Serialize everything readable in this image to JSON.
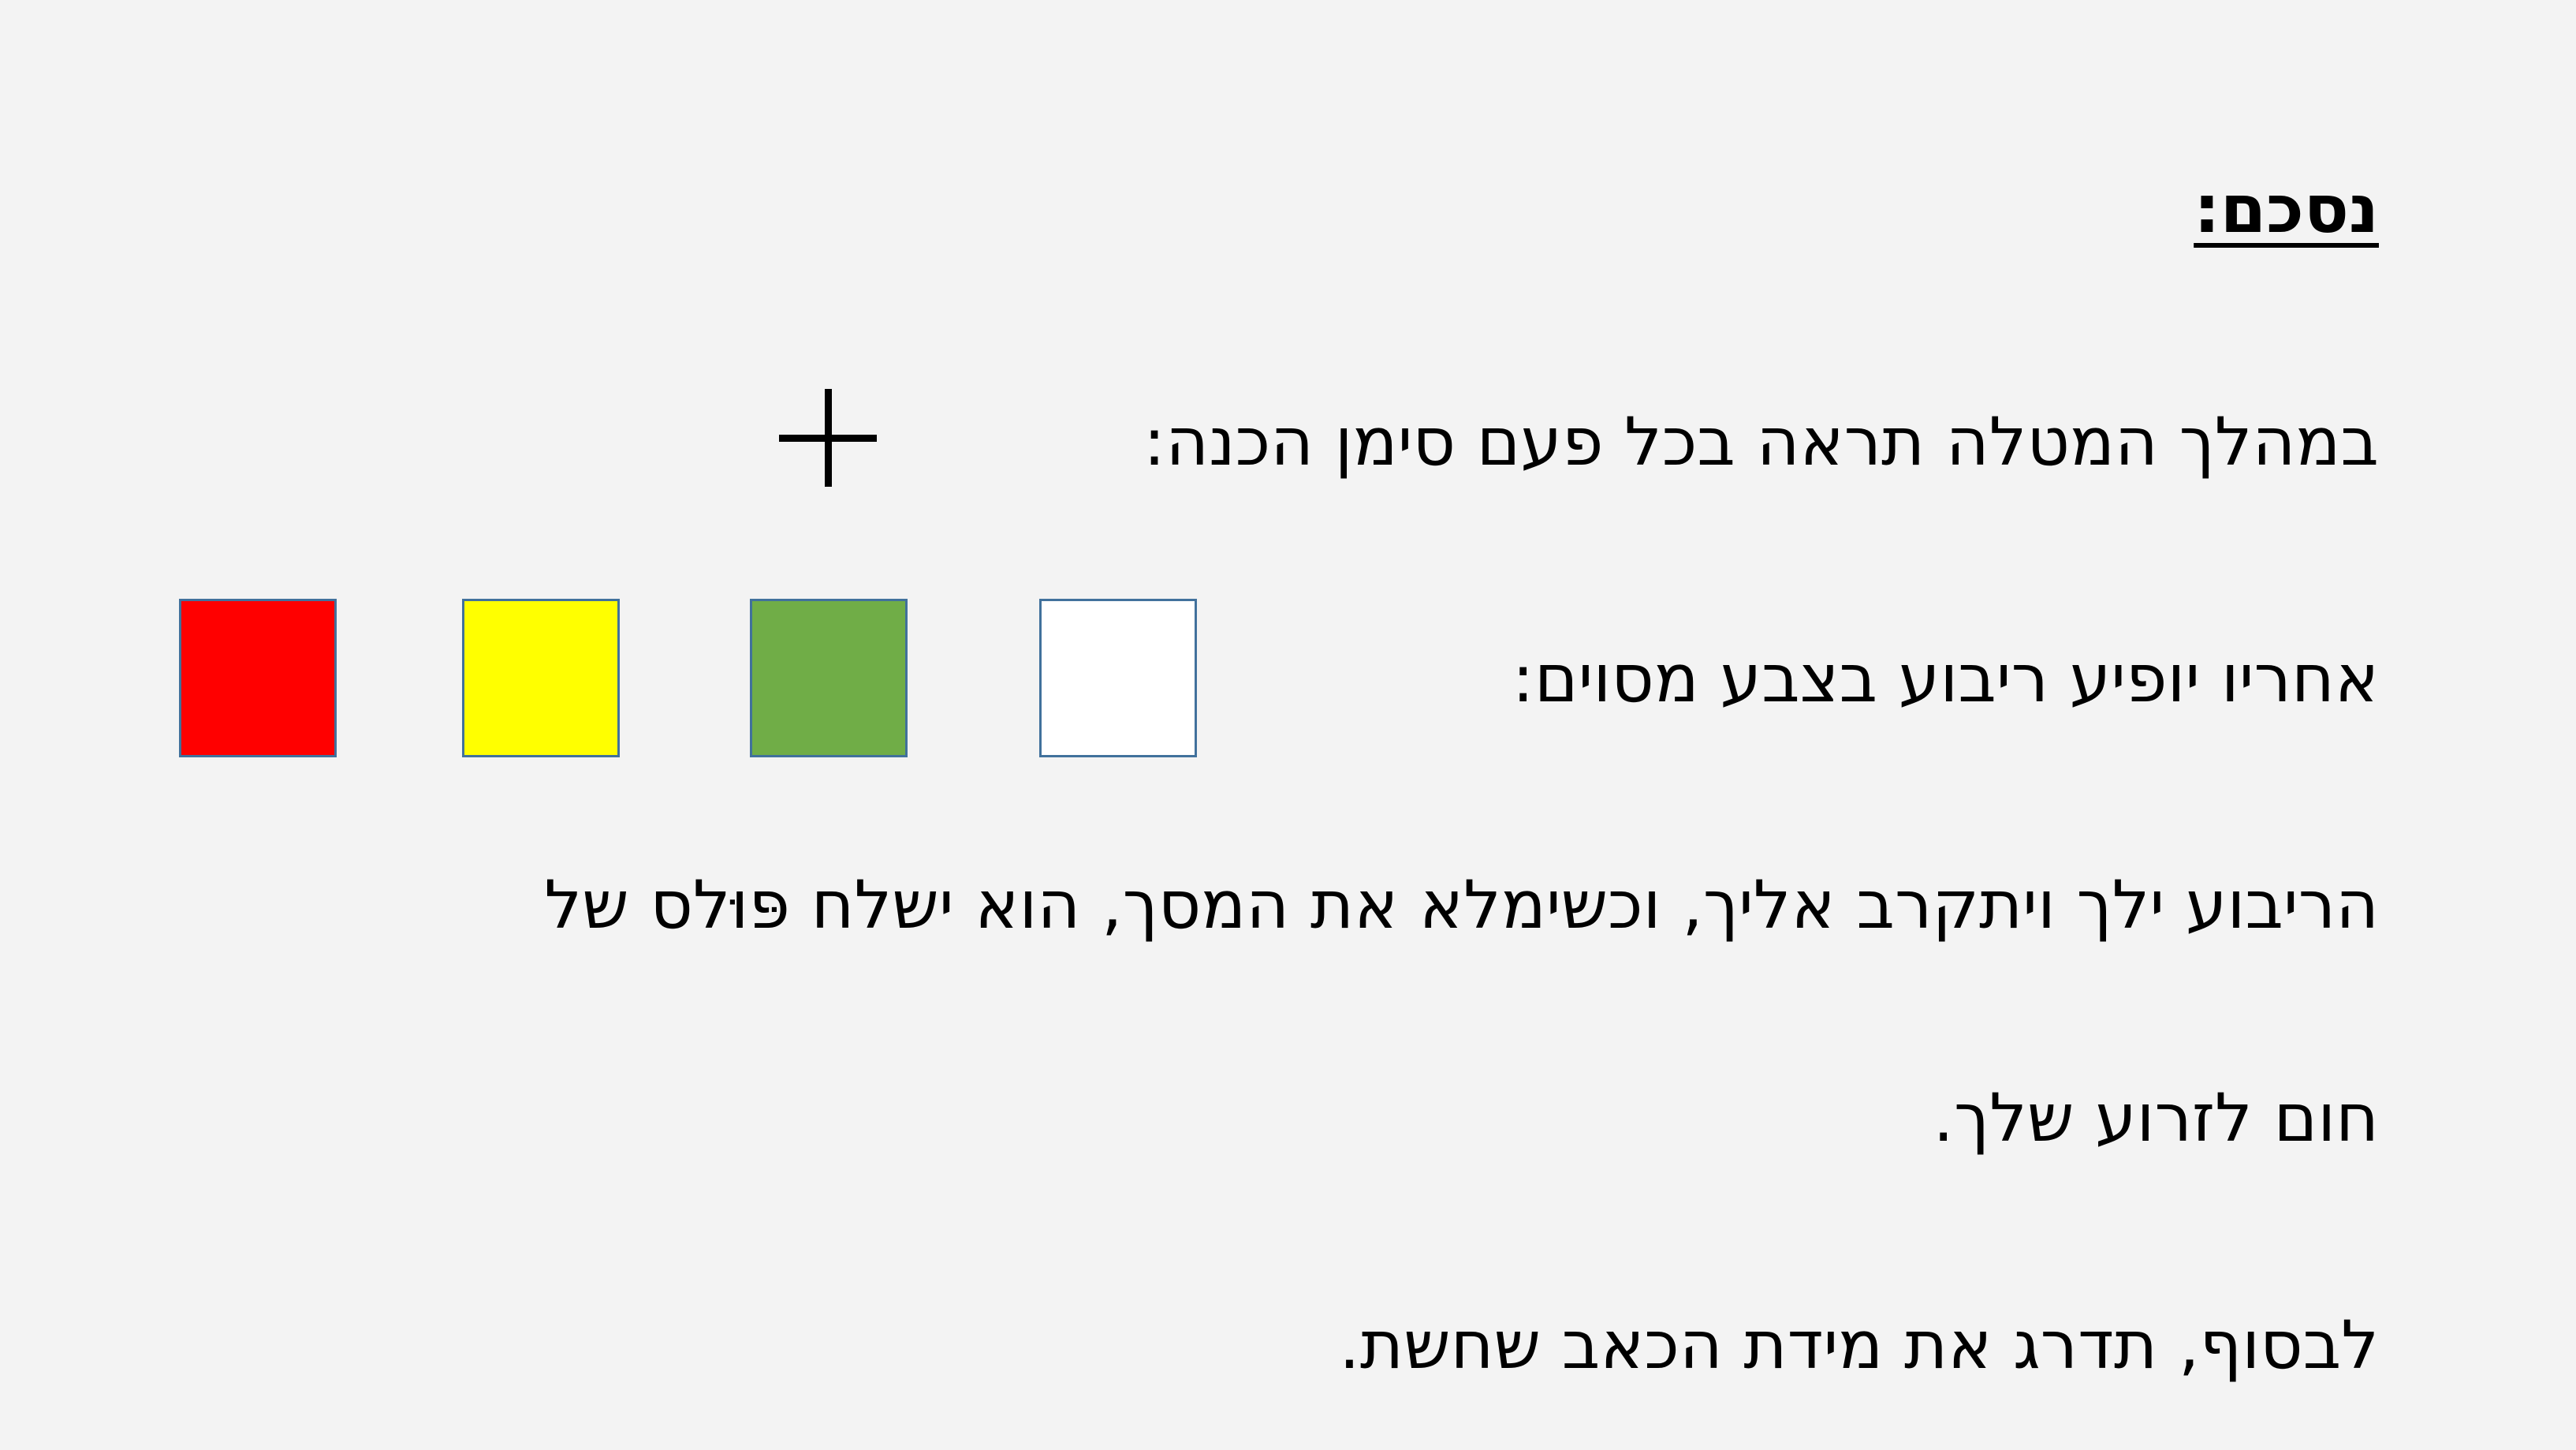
{
  "slide": {
    "title": "נסכם:",
    "lines": [
      "במהלך המטלה תראה בכל פעם סימן הכנה:",
      "אחריו יופיע ריבוע בצבע מסוים:",
      "הריבוע ילך ויתקרב אליך, וכשימלא את המסך, הוא ישלח פּוּלס של",
      "חום לזרוע שלך.",
      "לבסוף, תדרג את מידת הכאב שחשת."
    ],
    "fixation_icon": "plus-fixation-icon",
    "squares": [
      {
        "name": "red",
        "color": "#ff0000"
      },
      {
        "name": "yellow",
        "color": "#ffff00"
      },
      {
        "name": "green",
        "color": "#70ad47"
      },
      {
        "name": "white",
        "color": "#ffffff"
      }
    ]
  }
}
